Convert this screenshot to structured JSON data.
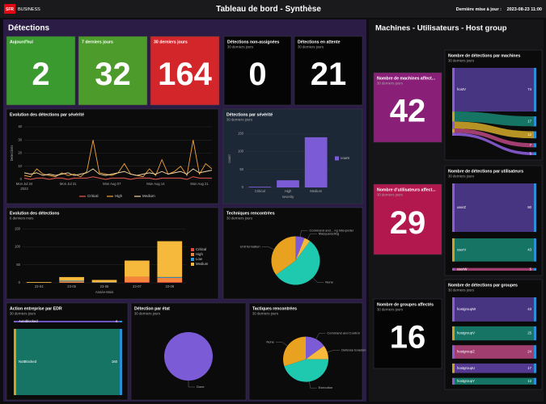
{
  "header": {
    "logo": "SFR",
    "logo_text": "BUSINESS",
    "title": "Tableau de bord - Synthèse",
    "updated_label": "Dernière mise à jour :",
    "updated": "2023-08-23 11:00"
  },
  "detections": {
    "title": "Détections",
    "kpis": [
      {
        "title": "Aujourd'hui",
        "value": 2,
        "color": "#3b9a2f"
      },
      {
        "title": "7 derniers jours",
        "value": 32,
        "color": "#4c9b2b"
      },
      {
        "title": "30 derniers jours",
        "value": 164,
        "color": "#d3262b"
      },
      {
        "title": "Détections non-assignées",
        "subtitle": "30 derniers jours",
        "value": 0,
        "color": "#050505"
      },
      {
        "title": "Détections en attente",
        "subtitle": "30 derniers jours",
        "value": 21,
        "color": "#050505"
      }
    ]
  },
  "severity_line": {
    "type": "line",
    "title": "Evolution des détections par sévérité",
    "y_label": "Detections",
    "categories": [
      "Mon Jul 24",
      null,
      null,
      null,
      null,
      null,
      null,
      "Mon Jul 31",
      null,
      null,
      null,
      null,
      null,
      null,
      "Mon Aug 07",
      null,
      null,
      null,
      null,
      null,
      null,
      "Mon Aug 14",
      null,
      null,
      null,
      null,
      null,
      null,
      "Mon Aug 21",
      null,
      null
    ],
    "year_label": "2023",
    "ylim": [
      0,
      40
    ],
    "yticks": [
      0,
      10,
      20,
      30,
      40
    ],
    "series": [
      {
        "name": "Critical",
        "color": "#e85a4f",
        "values": [
          1,
          0,
          1,
          1,
          0,
          1,
          1,
          0,
          1,
          1,
          1,
          2,
          1,
          0,
          1,
          1,
          1,
          0,
          1,
          1,
          1,
          0,
          1,
          1,
          1,
          1,
          0,
          2,
          1,
          1,
          1
        ]
      },
      {
        "name": "High",
        "color": "#f2a33a",
        "values": [
          3,
          2,
          8,
          4,
          3,
          2,
          5,
          3,
          4,
          2,
          6,
          30,
          5,
          4,
          3,
          5,
          12,
          4,
          3,
          2,
          8,
          3,
          15,
          4,
          6,
          10,
          3,
          30,
          4,
          12,
          8
        ]
      },
      {
        "name": "Medium",
        "color": "#f3d6a4",
        "values": [
          5,
          4,
          5,
          3,
          4,
          3,
          4,
          5,
          3,
          4,
          5,
          8,
          4,
          3,
          4,
          5,
          6,
          4,
          3,
          4,
          5,
          4,
          6,
          4,
          5,
          6,
          4,
          8,
          5,
          6,
          7
        ]
      }
    ]
  },
  "severity_bar": {
    "type": "bar",
    "title": "Détections par sévérité",
    "subtitle": "30 derniers jours",
    "x_label": "severity",
    "y_label": "count",
    "legend": "count",
    "color": "#7b5bd6",
    "categories": [
      "Critical",
      "High",
      "Medium"
    ],
    "values": [
      2,
      20,
      140
    ],
    "ylim": [
      0,
      160
    ],
    "yticks": [
      0,
      50,
      100,
      150
    ]
  },
  "monthly": {
    "type": "stacked_bar",
    "title": "Evolution des détections",
    "subtitle": "6 derniers mois",
    "x_label": "Année-Mois",
    "categories": [
      "23-04",
      "23-05",
      "23-06",
      "23-07",
      "23-08"
    ],
    "ylim": [
      0,
      160
    ],
    "yticks": [
      0,
      50,
      100,
      150
    ],
    "series": [
      {
        "name": "Critical",
        "color": "#e8473f",
        "values": [
          0,
          0,
          0,
          2,
          2
        ]
      },
      {
        "name": "High",
        "color": "#f5853a",
        "values": [
          0,
          4,
          1,
          15,
          12
        ]
      },
      {
        "name": "Low",
        "color": "#2a9bd8",
        "values": [
          0,
          2,
          1,
          0,
          2
        ]
      },
      {
        "name": "Medium",
        "color": "#f6b93b",
        "values": [
          2,
          10,
          6,
          45,
          100
        ]
      }
    ]
  },
  "techniques": {
    "type": "pie",
    "title": "Techniques rencontrées",
    "subtitle": "30 derniers jours",
    "categories": [
      "Command and... ng Interpreter",
      "Masquerading",
      "None",
      "Unit formation"
    ],
    "values": [
      6,
      4,
      55,
      35
    ],
    "colors": [
      "#7b5bd6",
      "#f6b93b",
      "#1fc9b0",
      "#e8a21f"
    ]
  },
  "edr": {
    "type": "sankey",
    "title": "Action entreprise par EDR",
    "subtitle": "30 derniers jours",
    "items": [
      {
        "label": "Autoblocked",
        "value": 4,
        "color": "#7b5bd6"
      },
      {
        "label": "NotBlocked",
        "value": 160,
        "color": "#17806f"
      }
    ]
  },
  "state": {
    "type": "pie",
    "title": "Détection par état",
    "subtitle": "30 derniers jours",
    "categories": [
      "Done"
    ],
    "values": [
      100
    ],
    "colors": [
      "#7b5bd6"
    ]
  },
  "tactics": {
    "type": "pie",
    "title": "Tactiques rencontrées",
    "subtitle": "30 derniers jours",
    "categories": [
      "Command and Control",
      "Defense Evasion",
      "Execution",
      "None"
    ],
    "values": [
      15,
      10,
      45,
      30
    ],
    "colors": [
      "#7b5bd6",
      "#f6b93b",
      "#1fc9b0",
      "#e8a21f"
    ]
  },
  "hosts": {
    "title": "Machines - Utilisateurs - Host group",
    "kpis": [
      {
        "title": "Nombre de machines affect...",
        "subtitle": "30 derniers jours",
        "value": 42,
        "color": "#8a1f78"
      },
      {
        "title": "Nombre d'utilisateurs affect...",
        "subtitle": "30 derniers jours",
        "value": 29,
        "color": "#b2184d"
      },
      {
        "title": "Nombre de groupes affectés",
        "subtitle": "30 derniers jours",
        "value": 16,
        "color": "#050505"
      }
    ],
    "sankeys": [
      {
        "type": "sankey",
        "title": "Nombre de détections par machines",
        "subtitle": "30 derniers jours",
        "items": [
          {
            "label": "hostV",
            "value": 74,
            "color": "#4f3a8f"
          },
          {
            "value": 17,
            "color": "#17806f"
          },
          {
            "value": 12,
            "color": "#c9a227"
          },
          {
            "value": 7,
            "color": "#b0457a"
          },
          {
            "value": 5,
            "color": "#8a5cd6"
          }
        ]
      },
      {
        "type": "sankey",
        "title": "Nombre de détections par utilisateurs",
        "subtitle": "30 derniers jours",
        "items": [
          {
            "label": "userZ",
            "value": 90,
            "color": "#4f3a8f"
          },
          {
            "label": "userV",
            "value": 43,
            "color": "#17806f"
          },
          {
            "label": "userW",
            "value": 5,
            "color": "#b0457a"
          }
        ]
      },
      {
        "type": "sankey",
        "title": "Nombre de détections par groupes",
        "subtitle": "30 derniers jours",
        "items": [
          {
            "label": "hostgroupW",
            "value": 43,
            "color": "#4f3a8f"
          },
          {
            "label": "hostgroupV",
            "value": 25,
            "color": "#17806f"
          },
          {
            "label": "hostgroupZ",
            "value": 24,
            "color": "#b0457a"
          },
          {
            "label": "hostgroupU",
            "value": 17,
            "color": "#5b3f9e"
          },
          {
            "label": "hostgroupY",
            "value": 12,
            "color": "#17806f"
          }
        ]
      }
    ]
  }
}
